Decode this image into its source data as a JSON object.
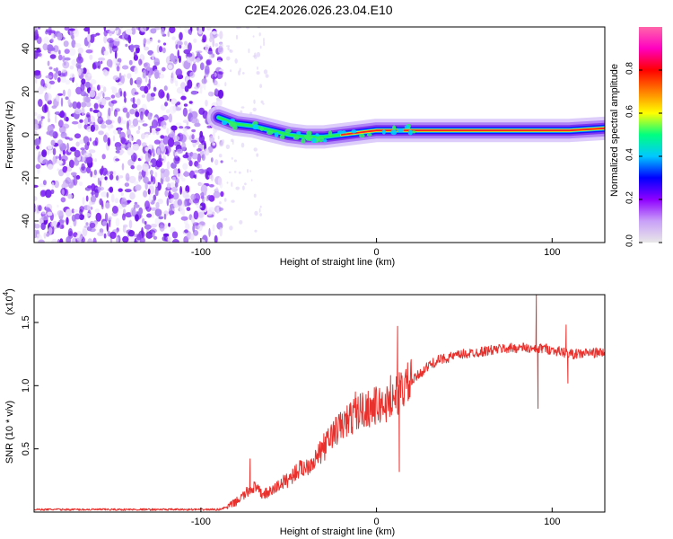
{
  "title": "C2E4.2026.026.23.04.E10",
  "chart_data": [
    {
      "type": "heatmap",
      "title": "C2E4.2026.026.23.04.E10",
      "xlabel": "Height of straight line (km)",
      "ylabel": "Frequency (Hz)",
      "xlim": [
        -195,
        130
      ],
      "ylim": [
        -50,
        50
      ],
      "x_ticks": [
        -100,
        0,
        100
      ],
      "x_tick_labels": [
        "-100",
        "0",
        "100"
      ],
      "y_ticks": [
        -40,
        -20,
        0,
        20,
        40
      ],
      "y_tick_labels": [
        "-40",
        "-20",
        "0",
        "20",
        "40"
      ],
      "noise_region_x": [
        -195,
        -88
      ],
      "signal_onset_x": -90,
      "ridge_frequency": [
        {
          "x": -90,
          "f": 8
        },
        {
          "x": -80,
          "f": 5
        },
        {
          "x": -70,
          "f": 4
        },
        {
          "x": -60,
          "f": 2
        },
        {
          "x": -50,
          "f": 0
        },
        {
          "x": -40,
          "f": -1
        },
        {
          "x": -30,
          "f": -1
        },
        {
          "x": -20,
          "f": 0
        },
        {
          "x": -10,
          "f": 1
        },
        {
          "x": 0,
          "f": 2
        },
        {
          "x": 10,
          "f": 2
        },
        {
          "x": 20,
          "f": 2
        },
        {
          "x": 50,
          "f": 2
        },
        {
          "x": 80,
          "f": 2
        },
        {
          "x": 110,
          "f": 2
        },
        {
          "x": 130,
          "f": 3
        }
      ],
      "colorbar": {
        "label": "Normalized spectral amplitude",
        "range": [
          0,
          1
        ],
        "ticks": [
          0.0,
          0.2,
          0.4,
          0.6,
          0.8
        ],
        "tick_labels": [
          "0.0",
          "0.2",
          "0.4",
          "0.6",
          "0.8"
        ],
        "stops": [
          "#e8e8e8",
          "#c8a0f8",
          "#8f00ff",
          "#0000ff",
          "#00c8ff",
          "#00ff80",
          "#ffff00",
          "#ff8000",
          "#ff0000",
          "#ff00c0",
          "#ff66aa"
        ]
      }
    },
    {
      "type": "line",
      "xlabel": "Height of straight line (km)",
      "ylabel": "SNR (10 * v/v)",
      "y_multiplier_label": "(x10",
      "y_multiplier_exponent": "4",
      "y_multiplier_close": ")",
      "xlim": [
        -195,
        130
      ],
      "ylim": [
        0,
        1.72
      ],
      "x_ticks": [
        -100,
        0,
        100
      ],
      "x_tick_labels": [
        "-100",
        "0",
        "100"
      ],
      "y_ticks": [
        0.5,
        1.0,
        1.5
      ],
      "y_tick_labels": [
        "0.5",
        "1.0",
        "1.5"
      ],
      "color": "#e8312d",
      "series": [
        {
          "name": "SNR",
          "points": [
            {
              "x": -195,
              "y": 0.02
            },
            {
              "x": -170,
              "y": 0.02
            },
            {
              "x": -140,
              "y": 0.02
            },
            {
              "x": -110,
              "y": 0.02
            },
            {
              "x": -90,
              "y": 0.02
            },
            {
              "x": -85,
              "y": 0.04
            },
            {
              "x": -80,
              "y": 0.08
            },
            {
              "x": -75,
              "y": 0.14
            },
            {
              "x": -70,
              "y": 0.2
            },
            {
              "x": -65,
              "y": 0.14
            },
            {
              "x": -60,
              "y": 0.16
            },
            {
              "x": -55,
              "y": 0.22
            },
            {
              "x": -50,
              "y": 0.26
            },
            {
              "x": -45,
              "y": 0.33
            },
            {
              "x": -40,
              "y": 0.36
            },
            {
              "x": -35,
              "y": 0.42
            },
            {
              "x": -30,
              "y": 0.5
            },
            {
              "x": -25,
              "y": 0.62
            },
            {
              "x": -20,
              "y": 0.68
            },
            {
              "x": -15,
              "y": 0.74
            },
            {
              "x": -10,
              "y": 0.8
            },
            {
              "x": -5,
              "y": 0.82
            },
            {
              "x": 0,
              "y": 0.84
            },
            {
              "x": 5,
              "y": 0.85
            },
            {
              "x": 10,
              "y": 0.9
            },
            {
              "x": 15,
              "y": 0.98
            },
            {
              "x": 20,
              "y": 1.03
            },
            {
              "x": 25,
              "y": 1.1
            },
            {
              "x": 30,
              "y": 1.16
            },
            {
              "x": 35,
              "y": 1.2
            },
            {
              "x": 40,
              "y": 1.22
            },
            {
              "x": 50,
              "y": 1.25
            },
            {
              "x": 60,
              "y": 1.27
            },
            {
              "x": 70,
              "y": 1.29
            },
            {
              "x": 80,
              "y": 1.3
            },
            {
              "x": 85,
              "y": 1.3
            },
            {
              "x": 90,
              "y": 1.28
            },
            {
              "x": 95,
              "y": 1.3
            },
            {
              "x": 100,
              "y": 1.28
            },
            {
              "x": 105,
              "y": 1.27
            },
            {
              "x": 110,
              "y": 1.25
            },
            {
              "x": 115,
              "y": 1.25
            },
            {
              "x": 120,
              "y": 1.26
            },
            {
              "x": 125,
              "y": 1.26
            },
            {
              "x": 130,
              "y": 1.26
            }
          ],
          "spikes": [
            {
              "x": -72,
              "y": 0.42
            },
            {
              "x": -30,
              "y": 0.62
            },
            {
              "x": -12,
              "y": 0.95
            },
            {
              "x": 8,
              "y": 1.08
            },
            {
              "x": 12,
              "y": 1.47
            },
            {
              "x": 13,
              "y": 0.32
            },
            {
              "x": 91,
              "y": 1.72
            },
            {
              "x": 92,
              "y": 0.82
            },
            {
              "x": 108,
              "y": 1.48
            },
            {
              "x": 109,
              "y": 1.02
            }
          ]
        }
      ]
    }
  ]
}
